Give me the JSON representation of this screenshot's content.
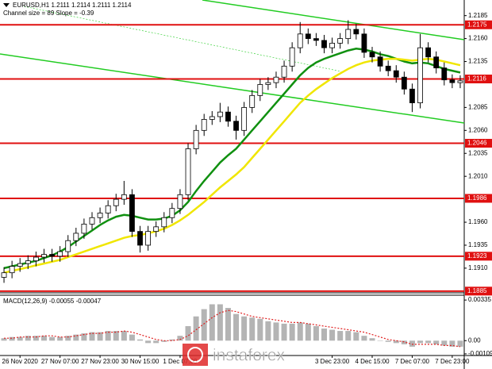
{
  "header": {
    "symbol_line": "EURUSD,H1  1.2111 1.2114 1.2111 1.2114",
    "indicator_line": "Channel size = 89 Slope = -0.39"
  },
  "watermark": "instaforex",
  "chart_data": [
    {
      "type": "candlestick",
      "open": [
        1.19,
        1.1905,
        1.1912,
        1.1915,
        1.1918,
        1.1922,
        1.1925,
        1.1923,
        1.1928,
        1.194,
        1.1948,
        1.1958,
        1.1965,
        1.197,
        1.1978,
        1.1985,
        1.199,
        1.195,
        1.1935,
        1.195,
        1.1955,
        1.1965,
        1.1975,
        1.199,
        1.204,
        1.206,
        1.2072,
        1.2075,
        1.208,
        1.207,
        1.206,
        1.2085,
        1.2098,
        1.211,
        1.2112,
        1.2118,
        1.213,
        1.215,
        1.2165,
        1.216,
        1.2158,
        1.215,
        1.2155,
        1.216,
        1.217,
        1.2165,
        1.2145,
        1.214,
        1.213,
        1.2125,
        1.2118,
        1.2105,
        1.209,
        1.215,
        1.214,
        1.2128,
        1.2115,
        1.2112
      ],
      "high": [
        1.1911,
        1.1918,
        1.1921,
        1.1924,
        1.1928,
        1.1931,
        1.1931,
        1.1934,
        1.1946,
        1.1954,
        1.1964,
        1.1971,
        1.1976,
        1.1984,
        1.1991,
        1.2005,
        1.1996,
        1.1956,
        1.1956,
        1.1961,
        1.1971,
        1.1981,
        1.1996,
        1.2046,
        1.2066,
        1.2078,
        1.2081,
        1.209,
        1.2086,
        1.2076,
        1.2091,
        1.2104,
        1.2116,
        1.2118,
        1.2124,
        1.2136,
        1.2156,
        1.2178,
        1.2171,
        1.2166,
        1.2164,
        1.2161,
        1.2166,
        1.218,
        1.2176,
        1.2171,
        1.2151,
        1.2146,
        1.2136,
        1.2131,
        1.2124,
        1.2111,
        1.2165,
        1.2156,
        1.2146,
        1.2134,
        1.2121,
        1.212
      ],
      "low": [
        1.1894,
        1.1899,
        1.1906,
        1.1909,
        1.1912,
        1.1916,
        1.1917,
        1.1917,
        1.1922,
        1.1934,
        1.1942,
        1.1952,
        1.1959,
        1.1964,
        1.1972,
        1.1979,
        1.1944,
        1.1927,
        1.1929,
        1.1944,
        1.1949,
        1.1959,
        1.1969,
        1.1984,
        1.2034,
        1.2054,
        1.2066,
        1.2069,
        1.2064,
        1.205,
        1.2054,
        1.2079,
        1.2092,
        1.2104,
        1.2106,
        1.2112,
        1.2124,
        1.2144,
        1.2154,
        1.2152,
        1.2144,
        1.2144,
        1.2149,
        1.2154,
        1.2159,
        1.2139,
        1.2134,
        1.2124,
        1.2119,
        1.2112,
        1.2099,
        1.208,
        1.2084,
        1.2134,
        1.2122,
        1.2109,
        1.2106,
        1.2106
      ],
      "close": [
        1.1905,
        1.1912,
        1.1915,
        1.1918,
        1.1922,
        1.1925,
        1.1923,
        1.1928,
        1.194,
        1.1948,
        1.1958,
        1.1965,
        1.197,
        1.1978,
        1.1985,
        1.199,
        1.195,
        1.1935,
        1.195,
        1.1955,
        1.1965,
        1.1975,
        1.199,
        1.204,
        1.206,
        1.2072,
        1.2075,
        1.208,
        1.207,
        1.206,
        1.2085,
        1.2098,
        1.211,
        1.2112,
        1.2118,
        1.213,
        1.215,
        1.2165,
        1.216,
        1.2158,
        1.215,
        1.2155,
        1.216,
        1.217,
        1.2165,
        1.2145,
        1.214,
        1.213,
        1.2125,
        1.2118,
        1.2105,
        1.209,
        1.215,
        1.214,
        1.2128,
        1.2115,
        1.2112,
        1.2114
      ],
      "moving_averages": [
        {
          "color": "#109010",
          "values": [
            1.191,
            1.1912,
            1.1914,
            1.1916,
            1.1918,
            1.1921,
            1.1924,
            1.1928,
            1.1933,
            1.1939,
            1.1945,
            1.1951,
            1.1957,
            1.1962,
            1.1966,
            1.1968,
            1.1967,
            1.1965,
            1.1963,
            1.1963,
            1.1964,
            1.1967,
            1.1973,
            1.1982,
            1.1994,
            1.2005,
            1.2015,
            1.2025,
            1.2033,
            1.204,
            1.205,
            1.206,
            1.207,
            1.208,
            1.209,
            1.21,
            1.211,
            1.212,
            1.2128,
            1.2134,
            1.2138,
            1.2141,
            1.2144,
            1.2147,
            1.2149,
            1.2148,
            1.2146,
            1.2143,
            1.2141,
            1.2138,
            1.2135,
            1.2133,
            1.2134,
            1.2133,
            1.213,
            1.2127,
            1.2125,
            1.2123
          ]
        },
        {
          "color": "#f0e600",
          "values": [
            1.1905,
            1.1907,
            1.1909,
            1.1911,
            1.1913,
            1.1915,
            1.1917,
            1.1919,
            1.1922,
            1.1925,
            1.1928,
            1.1931,
            1.1934,
            1.1937,
            1.194,
            1.1943,
            1.1945,
            1.1946,
            1.1948,
            1.195,
            1.1953,
            1.1957,
            1.1962,
            1.1968,
            1.1975,
            1.1982,
            1.199,
            1.1998,
            1.2005,
            1.2012,
            1.202,
            1.203,
            1.204,
            1.205,
            1.206,
            1.207,
            1.208,
            1.209,
            1.2098,
            1.2105,
            1.2111,
            1.2117,
            1.2122,
            1.2127,
            1.2131,
            1.2134,
            1.2136,
            1.2137,
            1.2138,
            1.2138,
            1.2137,
            1.2136,
            1.2137,
            1.2138,
            1.2137,
            1.2135,
            1.2133,
            1.2131
          ]
        }
      ],
      "levels": {
        "color": "#e01010",
        "values": [
          1.2175,
          1.2116,
          1.2046,
          1.1986,
          1.1923,
          1.1885
        ]
      },
      "ylim": [
        1.1884,
        1.2202
      ],
      "yticks": [
        1.2185,
        {
          "value": 1.216,
          "label": "1.2160"
        },
        1.2135,
        1.2085,
        {
          "value": 1.206,
          "label": "1.2060"
        },
        1.2035,
        {
          "value": 1.201,
          "label": "1.2010"
        },
        {
          "value": 1.196,
          "label": "1.1960"
        },
        1.1935,
        {
          "value": 1.191,
          "label": "1.1910"
        }
      ],
      "xticks": [
        {
          "value": 2,
          "label": "26 Nov 2020"
        },
        {
          "value": 7,
          "label": "27 Nov 07:00"
        },
        {
          "value": 12,
          "label": "27 Nov 23:00"
        },
        {
          "value": 17,
          "label": "30 Nov 15:00"
        },
        {
          "value": 22,
          "label": "1 Dec 07:00"
        },
        {
          "value": 41,
          "label": "3 Dec 23:00"
        },
        {
          "value": 46,
          "label": "4 Dec 15:00"
        },
        {
          "value": 51,
          "label": "7 Dec 07:00"
        },
        {
          "value": 56,
          "label": "7 Dec 23:00"
        }
      ],
      "grid": false
    },
    {
      "type": "macd",
      "title": "MACD(12,26,9) -0.00055 -0.00047",
      "color": "#b4b4b4",
      "values": [
        0.0002,
        0.0003,
        0.0003,
        0.0004,
        0.0004,
        0.0004,
        0.0003,
        0.0003,
        0.0004,
        0.0005,
        0.0006,
        0.0007,
        0.0007,
        0.0008,
        0.0008,
        0.0008,
        0.0005,
        0.0001,
        -0.0002,
        -0.0002,
        -0.0001,
        0.0001,
        0.0004,
        0.0012,
        0.002,
        0.0026,
        0.003,
        0.003,
        0.0027,
        0.0022,
        0.002,
        0.0019,
        0.0018,
        0.0016,
        0.0015,
        0.0014,
        0.0014,
        0.0015,
        0.0014,
        0.0012,
        0.001,
        0.0009,
        0.0008,
        0.0008,
        0.0007,
        0.0004,
        0.0002,
        0,
        -0.0001,
        -0.0002,
        -0.0003,
        -0.0005,
        -0.0002,
        -0.0002,
        -0.0003,
        -0.0004,
        -0.0005,
        -0.0005
      ],
      "signal": {
        "color": "#e02020",
        "values": [
          0.0002,
          0.0002,
          0.0003,
          0.0003,
          0.0003,
          0.0004,
          0.0004,
          0.0003,
          0.0003,
          0.0004,
          0.0005,
          0.0006,
          0.0006,
          0.0007,
          0.0007,
          0.0008,
          0.0007,
          0.0005,
          0.0003,
          0.0001,
          0,
          0,
          0.0001,
          0.0004,
          0.0009,
          0.0014,
          0.0019,
          0.0023,
          0.0025,
          0.0024,
          0.0022,
          0.002,
          0.0019,
          0.0018,
          0.0017,
          0.0016,
          0.0015,
          0.0015,
          0.0014,
          0.0013,
          0.0012,
          0.0011,
          0.001,
          0.0009,
          0.0008,
          0.0007,
          0.0005,
          0.0003,
          0.0001,
          0,
          -0.0001,
          -0.0003,
          -0.0003,
          -0.0003,
          -0.0003,
          -0.0004,
          -0.0004,
          -0.0005
        ]
      },
      "ylim": [
        -0.00116,
        0.00375
      ],
      "yticks": [
        0.00335,
        {
          "value": 0,
          "label": "0.00"
        },
        -0.00109
      ]
    }
  ]
}
